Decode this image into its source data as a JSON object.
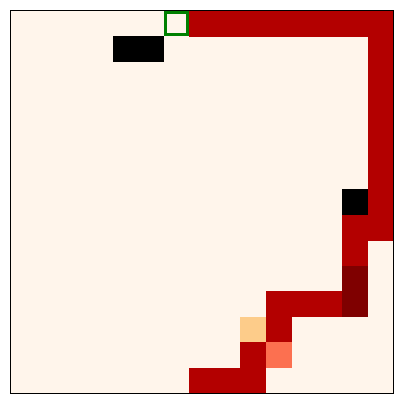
{
  "grid": {
    "cols": 15,
    "rows": 15,
    "background": "#fff5eb"
  },
  "palette": {
    "path": "#b30000",
    "dark_path": "#7f0000",
    "wall": "#000000",
    "light_peach": "#fdcc8a",
    "salmon": "#fc7050"
  },
  "cursor": {
    "col": 6,
    "row": 0,
    "color": "#008000"
  },
  "cells": [
    {
      "col": 7,
      "row": 0,
      "kind": "path"
    },
    {
      "col": 8,
      "row": 0,
      "kind": "path"
    },
    {
      "col": 9,
      "row": 0,
      "kind": "path"
    },
    {
      "col": 10,
      "row": 0,
      "kind": "path"
    },
    {
      "col": 11,
      "row": 0,
      "kind": "path"
    },
    {
      "col": 12,
      "row": 0,
      "kind": "path"
    },
    {
      "col": 13,
      "row": 0,
      "kind": "path"
    },
    {
      "col": 14,
      "row": 0,
      "kind": "path"
    },
    {
      "col": 4,
      "row": 1,
      "kind": "wall"
    },
    {
      "col": 5,
      "row": 1,
      "kind": "wall"
    },
    {
      "col": 14,
      "row": 1,
      "kind": "path"
    },
    {
      "col": 14,
      "row": 2,
      "kind": "path"
    },
    {
      "col": 14,
      "row": 3,
      "kind": "path"
    },
    {
      "col": 14,
      "row": 4,
      "kind": "path"
    },
    {
      "col": 14,
      "row": 5,
      "kind": "path"
    },
    {
      "col": 14,
      "row": 6,
      "kind": "path"
    },
    {
      "col": 13,
      "row": 7,
      "kind": "wall"
    },
    {
      "col": 14,
      "row": 7,
      "kind": "path"
    },
    {
      "col": 13,
      "row": 8,
      "kind": "path"
    },
    {
      "col": 14,
      "row": 8,
      "kind": "path"
    },
    {
      "col": 13,
      "row": 9,
      "kind": "path"
    },
    {
      "col": 13,
      "row": 10,
      "kind": "dark_path"
    },
    {
      "col": 10,
      "row": 11,
      "kind": "path"
    },
    {
      "col": 11,
      "row": 11,
      "kind": "path"
    },
    {
      "col": 12,
      "row": 11,
      "kind": "path"
    },
    {
      "col": 13,
      "row": 11,
      "kind": "dark_path"
    },
    {
      "col": 9,
      "row": 12,
      "kind": "light_peach"
    },
    {
      "col": 10,
      "row": 12,
      "kind": "path"
    },
    {
      "col": 9,
      "row": 13,
      "kind": "path"
    },
    {
      "col": 10,
      "row": 13,
      "kind": "salmon"
    },
    {
      "col": 7,
      "row": 14,
      "kind": "path"
    },
    {
      "col": 8,
      "row": 14,
      "kind": "path"
    },
    {
      "col": 9,
      "row": 14,
      "kind": "path"
    }
  ]
}
